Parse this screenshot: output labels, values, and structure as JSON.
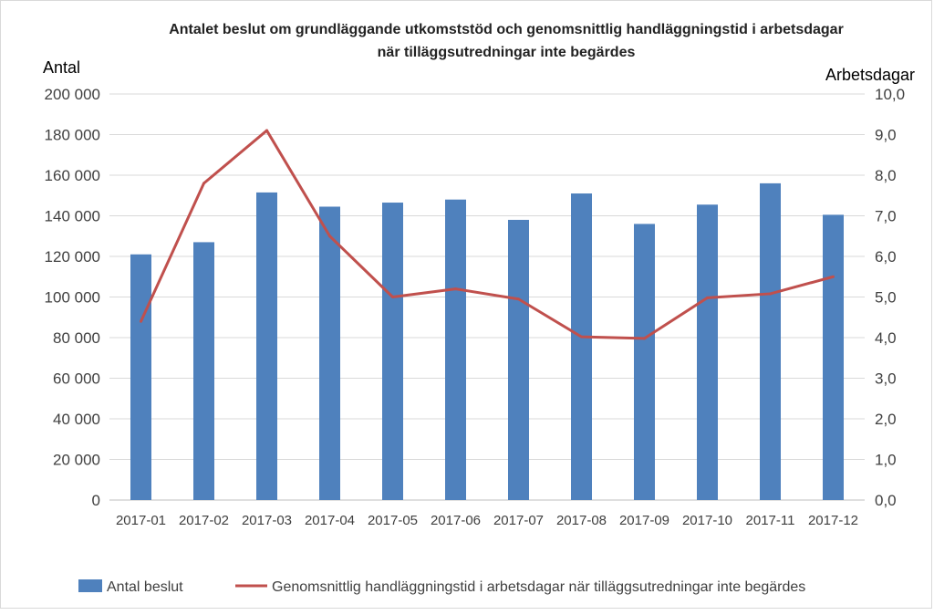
{
  "chart_data": {
    "type": "bar+line",
    "title": [
      "Antalet beslut om grundläggande utkomststöd och genomsnittlig handläggningstid i arbetsdagar",
      "när tilläggsutredningar inte begärdes"
    ],
    "ylabel_left": "Antal",
    "ylabel_right": "Arbetsdagar",
    "categories": [
      "2017-01",
      "2017-02",
      "2017-03",
      "2017-04",
      "2017-05",
      "2017-06",
      "2017-07",
      "2017-08",
      "2017-09",
      "2017-10",
      "2017-11",
      "2017-12"
    ],
    "ylim_left": [
      0,
      200000
    ],
    "ylim_right": [
      0,
      10
    ],
    "yticks_left": [
      "0",
      "20 000",
      "40 000",
      "60 000",
      "80 000",
      "100 000",
      "120 000",
      "140 000",
      "160 000",
      "180 000",
      "200 000"
    ],
    "yticks_right": [
      "0,0",
      "1,0",
      "2,0",
      "3,0",
      "4,0",
      "5,0",
      "6,0",
      "7,0",
      "8,0",
      "9,0",
      "10,0"
    ],
    "grid": true,
    "legend_position": "bottom",
    "series": [
      {
        "name": "Antal beslut",
        "type": "bar",
        "axis": "left",
        "color": "#4f81bd",
        "values": [
          121000,
          127000,
          151500,
          144500,
          146500,
          148000,
          138000,
          151000,
          136000,
          145500,
          156000,
          140500
        ]
      },
      {
        "name": "Genomsnittlig handläggningstid i arbetsdagar när tilläggsutredningar inte begärdes",
        "type": "line",
        "axis": "right",
        "color": "#c0504d",
        "values": [
          4.4,
          7.8,
          9.1,
          6.5,
          5.0,
          5.2,
          4.95,
          4.02,
          3.98,
          4.98,
          5.08,
          5.5
        ]
      }
    ]
  }
}
